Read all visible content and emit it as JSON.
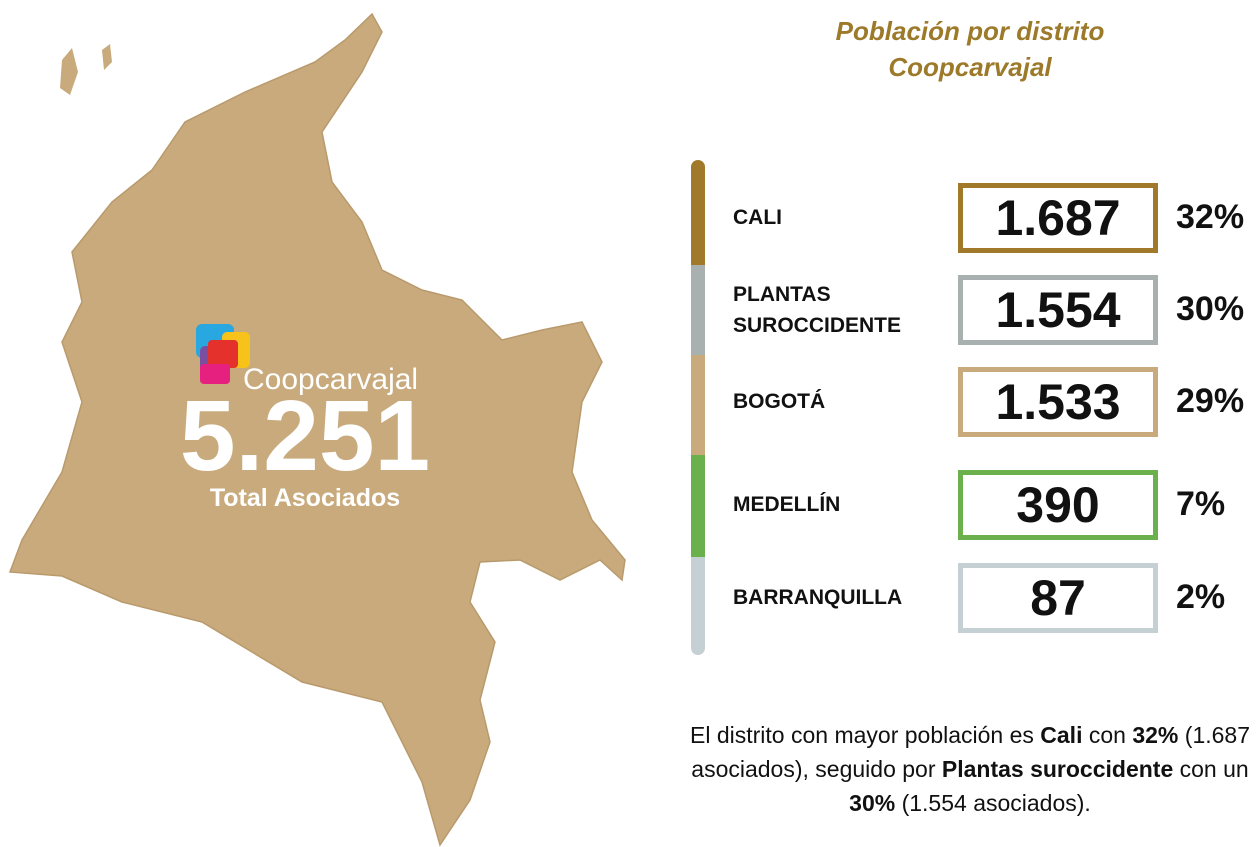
{
  "brand": "Coopcarvajal",
  "total": {
    "value": "5.251",
    "label": "Total Asociados"
  },
  "title": [
    "Población por distrito",
    "Coopcarvajal"
  ],
  "districts": [
    {
      "name": "CALI",
      "value": "1.687",
      "percent": "32%",
      "color": "#a07a2a"
    },
    {
      "name": "PLANTAS\nSUROCCIDENTE",
      "value": "1.554",
      "percent": "30%",
      "color": "#a9b0b0"
    },
    {
      "name": "BOGOTÁ",
      "value": "1.533",
      "percent": "29%",
      "color": "#c8aa7c"
    },
    {
      "name": "MEDELLÍN",
      "value": "390",
      "percent": "7%",
      "color": "#6ab04c"
    },
    {
      "name": "BARRANQUILLA",
      "value": "87",
      "percent": "2%",
      "color": "#c5d0d4"
    }
  ],
  "summary": [
    "El distrito con mayor población es ",
    "Cali",
    " con ",
    "32%",
    " (1.687 asociados), seguido por ",
    "Plantas suroccidente",
    " con un ",
    "30%",
    " (1.554 asociados)."
  ]
}
